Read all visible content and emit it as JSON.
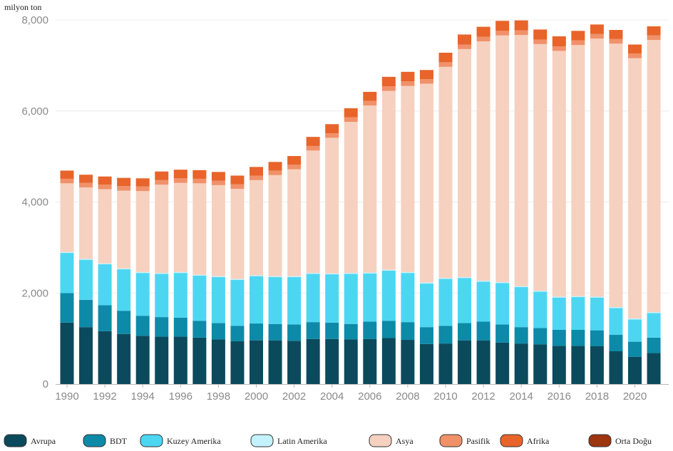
{
  "chart_data": {
    "type": "stacked-bar",
    "ylabel": "milyon ton",
    "ylim": [
      0,
      8000
    ],
    "yticks": [
      "0",
      "2,000",
      "4,000",
      "6,000",
      "8,000"
    ],
    "categories": [
      "1990",
      "1991",
      "1992",
      "1993",
      "1994",
      "1995",
      "1996",
      "1997",
      "1998",
      "1999",
      "2000",
      "2001",
      "2002",
      "2003",
      "2004",
      "2005",
      "2006",
      "2007",
      "2008",
      "2009",
      "2010",
      "2011",
      "2012",
      "2013",
      "2014",
      "2015",
      "2016",
      "2017",
      "2018",
      "2019",
      "2020",
      "2021"
    ],
    "xtick_labels": [
      "1990",
      "1992",
      "1994",
      "1996",
      "1998",
      "2000",
      "2002",
      "2004",
      "2006",
      "2008",
      "2010",
      "2012",
      "2014",
      "2016",
      "2018",
      "2020"
    ],
    "series": [
      {
        "name": "Avrupa",
        "color": "#0b4a5c",
        "values": [
          1350,
          1250,
          1160,
          1100,
          1060,
          1040,
          1040,
          1020,
          980,
          940,
          960,
          960,
          950,
          990,
          990,
          980,
          990,
          1010,
          970,
          880,
          890,
          960,
          960,
          910,
          890,
          870,
          840,
          840,
          830,
          720,
          600,
          680
        ]
      },
      {
        "name": "BDT",
        "color": "#0c8aa8",
        "values": [
          650,
          600,
          570,
          510,
          440,
          430,
          420,
          370,
          360,
          340,
          370,
          360,
          360,
          370,
          360,
          340,
          380,
          380,
          390,
          370,
          390,
          380,
          410,
          400,
          360,
          360,
          350,
          350,
          350,
          360,
          330,
          340
        ]
      },
      {
        "name": "Kuzey Amerika",
        "color": "#4dd6f2",
        "values": [
          880,
          880,
          900,
          910,
          940,
          950,
          980,
          990,
          1010,
          1010,
          1040,
          1030,
          1040,
          1060,
          1060,
          1100,
          1060,
          1100,
          1080,
          960,
          1030,
          990,
          880,
          910,
          880,
          800,
          710,
          720,
          720,
          590,
          490,
          540
        ]
      },
      {
        "name": "Latin Amerika",
        "color": "#c3f2fc",
        "values": [
          20,
          20,
          20,
          20,
          20,
          20,
          20,
          20,
          20,
          20,
          20,
          20,
          20,
          20,
          20,
          20,
          20,
          20,
          20,
          20,
          20,
          20,
          20,
          20,
          20,
          20,
          20,
          20,
          20,
          20,
          20,
          20
        ]
      },
      {
        "name": "Asya",
        "color": "#f6d1c0",
        "values": [
          1510,
          1570,
          1630,
          1710,
          1780,
          1940,
          1960,
          2010,
          2000,
          1980,
          2090,
          2220,
          2350,
          2690,
          2980,
          3320,
          3670,
          3930,
          4090,
          4370,
          4640,
          5010,
          5260,
          5420,
          5520,
          5420,
          5400,
          5520,
          5670,
          5790,
          5720,
          5980
        ]
      },
      {
        "name": "Pasifik",
        "color": "#f0916a",
        "values": [
          100,
          100,
          100,
          100,
          100,
          100,
          100,
          100,
          100,
          100,
          100,
          100,
          100,
          100,
          100,
          100,
          100,
          100,
          100,
          100,
          100,
          100,
          100,
          100,
          100,
          100,
          100,
          100,
          100,
          100,
          100,
          100
        ]
      },
      {
        "name": "Afrika",
        "color": "#e8642a",
        "values": [
          180,
          180,
          180,
          180,
          180,
          190,
          190,
          190,
          190,
          190,
          190,
          190,
          190,
          200,
          200,
          200,
          200,
          210,
          210,
          200,
          210,
          220,
          220,
          220,
          220,
          220,
          220,
          210,
          210,
          200,
          200,
          200
        ]
      },
      {
        "name": "Orta Doğu",
        "color": "#9c3510",
        "values": [
          0,
          0,
          0,
          0,
          0,
          0,
          0,
          0,
          0,
          0,
          0,
          0,
          0,
          0,
          0,
          0,
          0,
          0,
          0,
          0,
          0,
          0,
          0,
          0,
          0,
          0,
          0,
          0,
          0,
          0,
          0,
          0
        ]
      }
    ]
  }
}
